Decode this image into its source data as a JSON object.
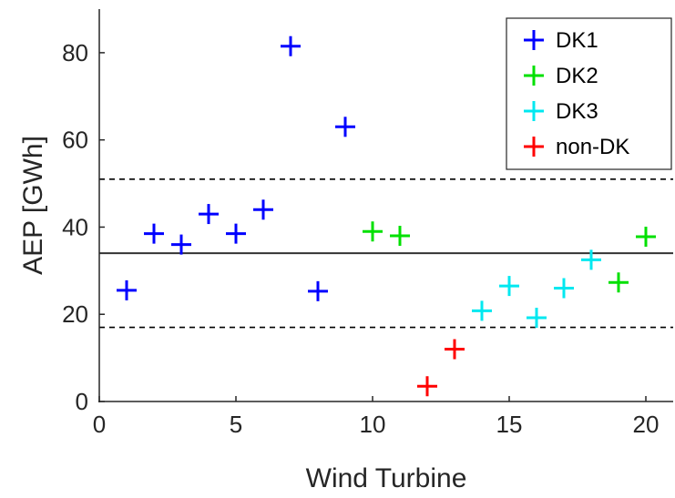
{
  "chart_data": {
    "type": "scatter",
    "xlabel": "Wind Turbine",
    "ylabel": "AEP [GWh]",
    "xlim": [
      0,
      21
    ],
    "ylim": [
      0,
      90
    ],
    "xticks": [
      0,
      5,
      10,
      15,
      20
    ],
    "yticks": [
      0,
      20,
      40,
      60,
      80
    ],
    "marker": "plus",
    "legend_position": "top-right",
    "series": [
      {
        "name": "DK1",
        "color": "#0000ff",
        "points": [
          [
            1,
            25.5
          ],
          [
            2,
            38.5
          ],
          [
            3,
            36
          ],
          [
            4,
            43
          ],
          [
            5,
            38.5
          ],
          [
            6,
            44
          ],
          [
            7,
            81.5
          ],
          [
            8,
            25.3
          ],
          [
            9,
            63
          ]
        ]
      },
      {
        "name": "DK2",
        "color": "#00e000",
        "points": [
          [
            10,
            39
          ],
          [
            11,
            38
          ],
          [
            19,
            27.3
          ],
          [
            20,
            37.8
          ]
        ]
      },
      {
        "name": "DK3",
        "color": "#00e8f0",
        "points": [
          [
            14,
            20.8
          ],
          [
            15,
            26.5
          ],
          [
            16,
            19.2
          ],
          [
            17,
            26
          ],
          [
            18,
            32.5
          ]
        ]
      },
      {
        "name": "non-DK",
        "color": "#ff0000",
        "points": [
          [
            12,
            3.5
          ],
          [
            13,
            12
          ]
        ]
      }
    ],
    "reference_lines": [
      {
        "y": 34,
        "style": "solid",
        "color": "#333333"
      },
      {
        "y": 51,
        "style": "dashed",
        "color": "#000000"
      },
      {
        "y": 17,
        "style": "dashed",
        "color": "#000000"
      }
    ]
  }
}
